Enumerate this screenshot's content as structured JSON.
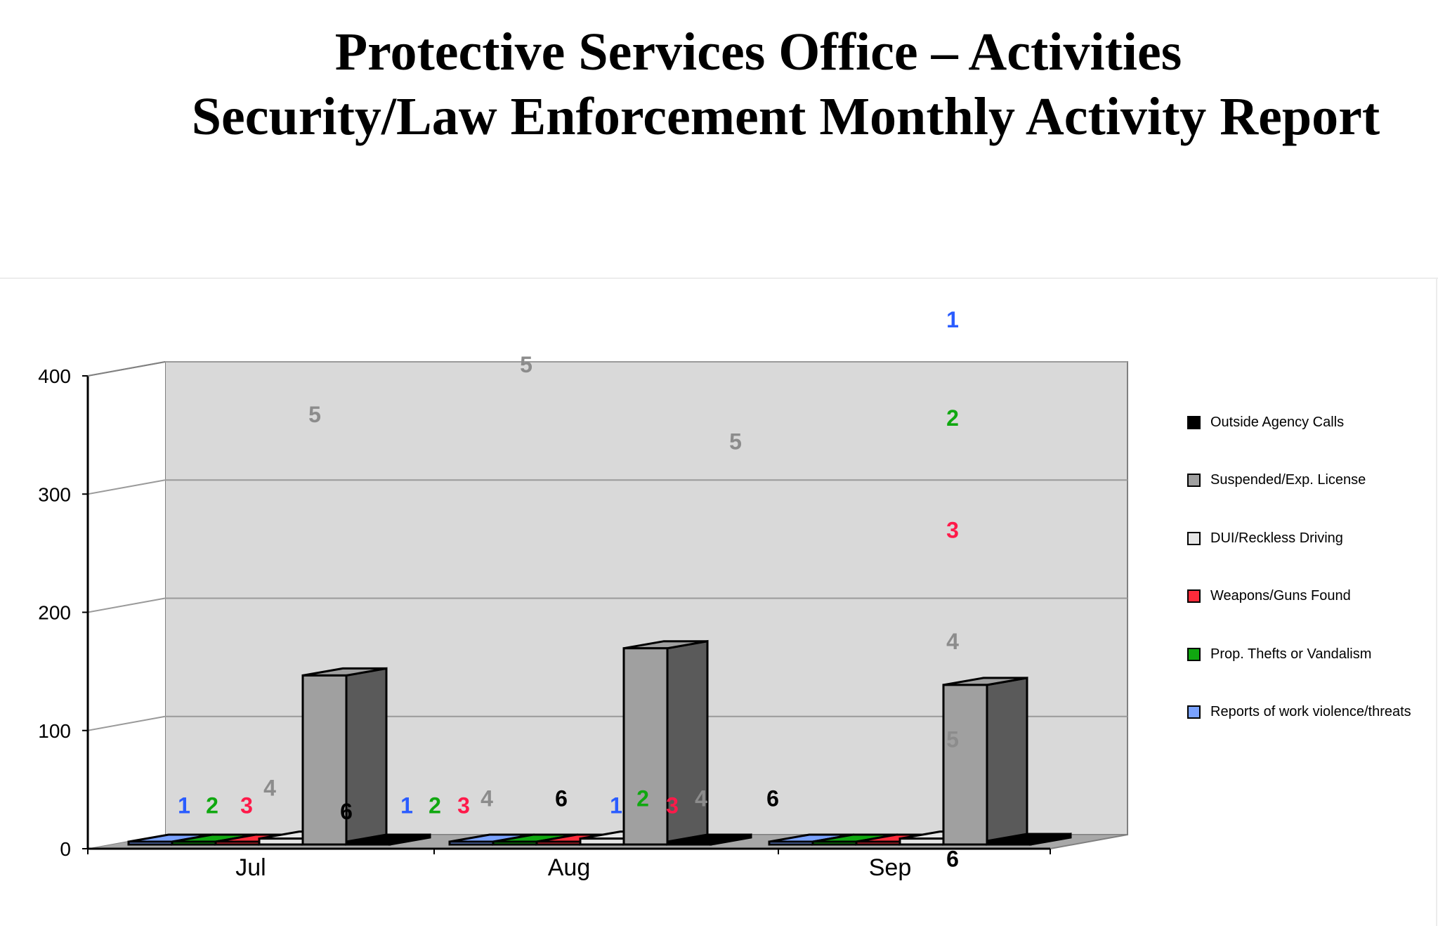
{
  "title": {
    "line1": "Protective Services Office – Activities",
    "line2": "Security/Law Enforcement Monthly Activity Report"
  },
  "legend": {
    "items": [
      {
        "label": "Outside Agency Calls",
        "color": "#000000"
      },
      {
        "label": "Suspended/Exp. License",
        "color": "#a0a0a0"
      },
      {
        "label": "DUI/Reckless Driving",
        "color": "#e6e6e6"
      },
      {
        "label": "Weapons/Guns Found",
        "color": "#ff2b3a"
      },
      {
        "label": "Prop. Thefts or Vandalism",
        "color": "#10a810"
      },
      {
        "label": "Reports of work violence/threats",
        "color": "#7aa2ff"
      }
    ]
  },
  "chart_data": {
    "type": "bar",
    "style": "3d-clustered-column",
    "categories": [
      "Jul",
      "Aug",
      "Sep"
    ],
    "ylim": [
      0,
      400
    ],
    "yticks": [
      0,
      100,
      200,
      300,
      400
    ],
    "grid": true,
    "legend_position": "right",
    "series": [
      {
        "name": "Reports of work violence/threats",
        "color": "#7aa2ff",
        "values": [
          1,
          1,
          1
        ]
      },
      {
        "name": "Prop. Thefts or Vandalism",
        "color": "#10a810",
        "values": [
          1,
          1,
          1
        ]
      },
      {
        "name": "Weapons/Guns Found",
        "color": "#ff2b3a",
        "values": [
          1,
          1,
          1
        ]
      },
      {
        "name": "DUI/Reckless Driving",
        "color": "#e6e6e6",
        "values": [
          5,
          5,
          5
        ]
      },
      {
        "name": "Suspended/Exp. License",
        "color": "#a0a0a0",
        "values": [
          143,
          166,
          135
        ]
      },
      {
        "name": "Outside Agency Calls",
        "color": "#000000",
        "values": [
          1,
          1,
          3
        ]
      }
    ],
    "data_labels": [
      {
        "text": "1",
        "color": "#2a5cff",
        "category": "Jul",
        "level": 37
      },
      {
        "text": "2",
        "color": "#10a810",
        "category": "Jul",
        "level": 37
      },
      {
        "text": "3",
        "color": "#ff1a4a",
        "category": "Jul",
        "level": 37
      },
      {
        "text": "4",
        "color": "#8c8c8c",
        "category": "Jul",
        "level": 52
      },
      {
        "text": "5",
        "color": "#8c8c8c",
        "category": "Jul",
        "level": 368
      },
      {
        "text": "6",
        "color": "#000000",
        "category": "Jul",
        "level": 32
      },
      {
        "text": "1",
        "color": "#2a5cff",
        "category": "Aug",
        "level": 37
      },
      {
        "text": "2",
        "color": "#10a810",
        "category": "Aug",
        "level": 37
      },
      {
        "text": "3",
        "color": "#ff1a4a",
        "category": "Aug",
        "level": 37
      },
      {
        "text": "4",
        "color": "#8c8c8c",
        "category": "Aug",
        "level": 43
      },
      {
        "text": "5",
        "color": "#8c8c8c",
        "category": "Aug",
        "level": 410
      },
      {
        "text": "6",
        "color": "#000000",
        "category": "Aug",
        "level": 43
      },
      {
        "text": "1",
        "color": "#2a5cff",
        "category": "Aug2",
        "level": 37
      },
      {
        "text": "2",
        "color": "#10a810",
        "category": "Aug2",
        "level": 43
      },
      {
        "text": "3",
        "color": "#ff1a4a",
        "category": "Aug2",
        "level": 37
      },
      {
        "text": "4",
        "color": "#8c8c8c",
        "category": "Aug2",
        "level": 43
      },
      {
        "text": "5",
        "color": "#8c8c8c",
        "category": "Aug2",
        "level": 345
      },
      {
        "text": "6",
        "color": "#000000",
        "category": "Aug2",
        "level": 43
      },
      {
        "text": "1",
        "color": "#2a5cff",
        "category": "Sep",
        "level": 448
      },
      {
        "text": "2",
        "color": "#10a810",
        "category": "Sep",
        "level": 365
      },
      {
        "text": "3",
        "color": "#ff1a4a",
        "category": "Sep",
        "level": 270
      },
      {
        "text": "4",
        "color": "#8c8c8c",
        "category": "Sep",
        "level": 176
      },
      {
        "text": "5",
        "color": "#8c8c8c",
        "category": "Sep",
        "level": 93
      },
      {
        "text": "6",
        "color": "#000000",
        "category": "Sep",
        "level": -8
      }
    ]
  }
}
